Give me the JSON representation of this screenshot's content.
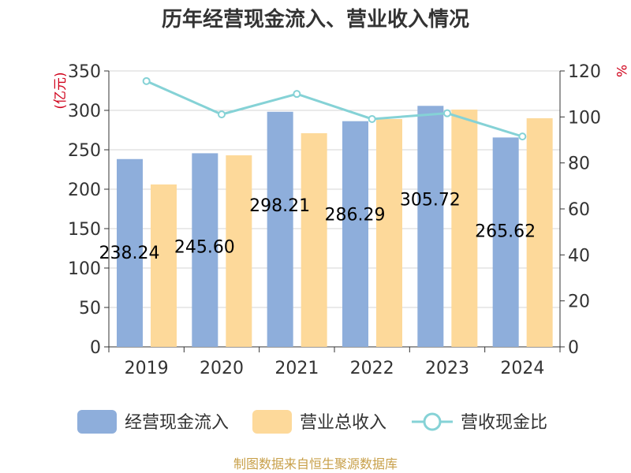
{
  "chart_data": {
    "type": "bar",
    "title": "历年经营现金流入、营业收入情况",
    "categories": [
      "2019",
      "2020",
      "2021",
      "2022",
      "2023",
      "2024"
    ],
    "y_left": {
      "unit_label": "(亿元)",
      "range": [
        0,
        350
      ],
      "ticks": [
        "0",
        "50",
        "100",
        "150",
        "200",
        "250",
        "300",
        "350"
      ]
    },
    "y_right": {
      "unit_label": "%",
      "range": [
        0,
        120
      ],
      "ticks": [
        "0",
        "20",
        "40",
        "60",
        "80",
        "100",
        "120"
      ]
    },
    "series": [
      {
        "name": "经营现金流入",
        "type": "bar",
        "axis": "left",
        "color": "#8eaedb",
        "values": [
          238.24,
          245.6,
          298.21,
          286.29,
          305.72,
          265.62
        ],
        "labels": [
          "238.24",
          "245.60",
          "298.21",
          "286.29",
          "305.72",
          "265.62"
        ]
      },
      {
        "name": "营业总收入",
        "type": "bar",
        "axis": "left",
        "color": "#fdd99a",
        "values": [
          206,
          243,
          271,
          289,
          301,
          290
        ]
      },
      {
        "name": "营收现金比",
        "type": "line",
        "axis": "right",
        "color": "#85d2d6",
        "values": [
          115.6,
          101.1,
          110.0,
          99.1,
          101.6,
          91.5
        ]
      }
    ],
    "grid": true,
    "legend_position": "bottom",
    "source": "制图数据来自恒生聚源数据库"
  }
}
